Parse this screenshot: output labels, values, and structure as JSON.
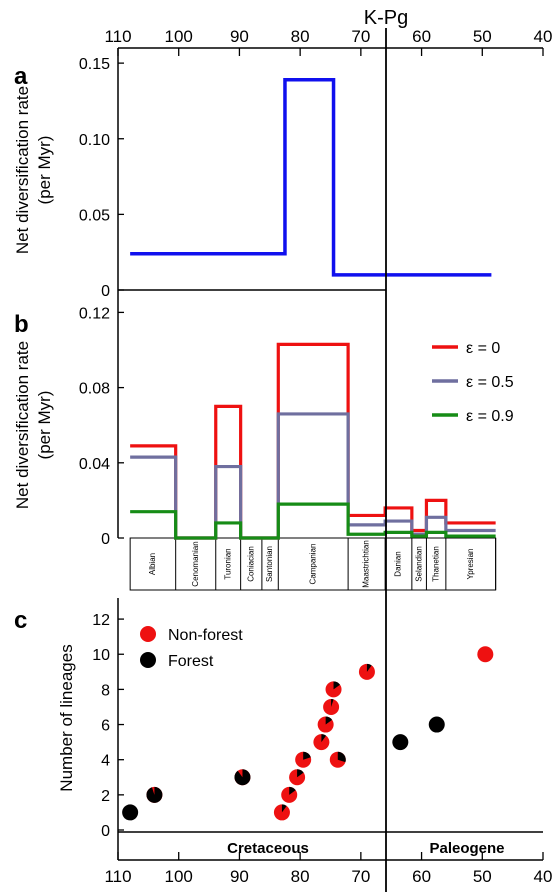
{
  "figure": {
    "event_label": "K-Pg",
    "top_axis_ticks": [
      "110",
      "100",
      "90",
      "80",
      "70",
      "60",
      "50",
      "40"
    ],
    "bottom_axis_ticks": [
      "110",
      "100",
      "90",
      "80",
      "70",
      "60",
      "50",
      "40"
    ]
  },
  "chart_data": [
    {
      "panel": "a",
      "type": "line",
      "ylabel": "Net diversification rate\n(per Myr)",
      "x_axis": "age (Ma), reversed 110 → 40",
      "xlim": [
        110,
        40
      ],
      "ylim": [
        0,
        0.16
      ],
      "yticks": [
        "0",
        "0.05",
        "0.10",
        "0.15"
      ],
      "series": [
        {
          "color": "#1010ee",
          "steps": [
            {
              "x0": 108,
              "x1": 82.5,
              "y": 0.024
            },
            {
              "x0": 82.5,
              "x1": 74.5,
              "y": 0.139
            },
            {
              "x0": 74.5,
              "x1": 48.5,
              "y": 0.01
            }
          ]
        }
      ]
    },
    {
      "panel": "b",
      "type": "line",
      "ylabel": "Net diversification rate\n(per Myr)",
      "xlim": [
        110,
        40
      ],
      "ylim": [
        0,
        0.13
      ],
      "yticks": [
        "0",
        "0.04",
        "0.08",
        "0.12"
      ],
      "legend_position": "top-right",
      "stages": [
        {
          "name": "Albian",
          "start": 108,
          "end": 100.5
        },
        {
          "name": "Cenomanian",
          "start": 100.5,
          "end": 93.9
        },
        {
          "name": "Turonian",
          "start": 93.9,
          "end": 89.8
        },
        {
          "name": "Coniacian",
          "start": 89.8,
          "end": 86.3
        },
        {
          "name": "Santonian",
          "start": 86.3,
          "end": 83.6
        },
        {
          "name": "Campanian",
          "start": 83.6,
          "end": 72.1
        },
        {
          "name": "Maastrichtian",
          "start": 72.1,
          "end": 66.0
        },
        {
          "name": "Danian",
          "start": 66.0,
          "end": 61.6
        },
        {
          "name": "Selandian",
          "start": 61.6,
          "end": 59.2
        },
        {
          "name": "Thanetian",
          "start": 59.2,
          "end": 56.0
        },
        {
          "name": "Ypresian",
          "start": 56.0,
          "end": 47.8
        }
      ],
      "series": [
        {
          "name": "ε = 0",
          "color": "#ee1111",
          "values": [
            0.049,
            0.0,
            0.07,
            0.0,
            0.0,
            0.103,
            0.012,
            0.016,
            0.004,
            0.02,
            0.008
          ]
        },
        {
          "name": "ε = 0.5",
          "color": "#6f6f9f",
          "values": [
            0.043,
            0.0,
            0.038,
            0.0,
            0.0,
            0.066,
            0.007,
            0.009,
            0.002,
            0.011,
            0.004
          ]
        },
        {
          "name": "ε = 0.9",
          "color": "#168c16",
          "values": [
            0.014,
            0.0,
            0.008,
            0.0,
            0.0,
            0.018,
            0.002,
            0.003,
            0.001,
            0.003,
            0.001
          ]
        }
      ]
    },
    {
      "panel": "c",
      "type": "scatter",
      "ylabel": "Number of lineages",
      "xlim": [
        110,
        40
      ],
      "ylim": [
        0,
        13
      ],
      "yticks": [
        "0",
        "2",
        "4",
        "6",
        "8",
        "10",
        "12"
      ],
      "legend_position": "top-left",
      "period_labels": {
        "left": "Cretaceous",
        "right": "Paleogene"
      },
      "series": [
        {
          "name": "Non-forest",
          "color": "#ee1111"
        },
        {
          "name": "Forest",
          "color": "#000000"
        }
      ],
      "points": [
        {
          "age": 108.0,
          "lineages": 1,
          "forest_fraction": 1.0
        },
        {
          "age": 104.0,
          "lineages": 2,
          "forest_fraction": 0.95
        },
        {
          "age": 89.5,
          "lineages": 3,
          "forest_fraction": 0.9
        },
        {
          "age": 83.0,
          "lineages": 1,
          "forest_fraction": 0.1
        },
        {
          "age": 81.8,
          "lineages": 2,
          "forest_fraction": 0.15
        },
        {
          "age": 80.5,
          "lineages": 3,
          "forest_fraction": 0.15
        },
        {
          "age": 79.5,
          "lineages": 4,
          "forest_fraction": 0.2
        },
        {
          "age": 76.5,
          "lineages": 5,
          "forest_fraction": 0.1
        },
        {
          "age": 75.8,
          "lineages": 6,
          "forest_fraction": 0.15
        },
        {
          "age": 74.9,
          "lineages": 7,
          "forest_fraction": 0.05
        },
        {
          "age": 74.5,
          "lineages": 8,
          "forest_fraction": 0.15
        },
        {
          "age": 73.8,
          "lineages": 4,
          "forest_fraction": 0.3
        },
        {
          "age": 69.0,
          "lineages": 9,
          "forest_fraction": 0.1
        },
        {
          "age": 63.5,
          "lineages": 5,
          "forest_fraction": 1.0
        },
        {
          "age": 57.5,
          "lineages": 6,
          "forest_fraction": 1.0
        },
        {
          "age": 49.5,
          "lineages": 10,
          "forest_fraction": 0.0
        }
      ]
    }
  ]
}
